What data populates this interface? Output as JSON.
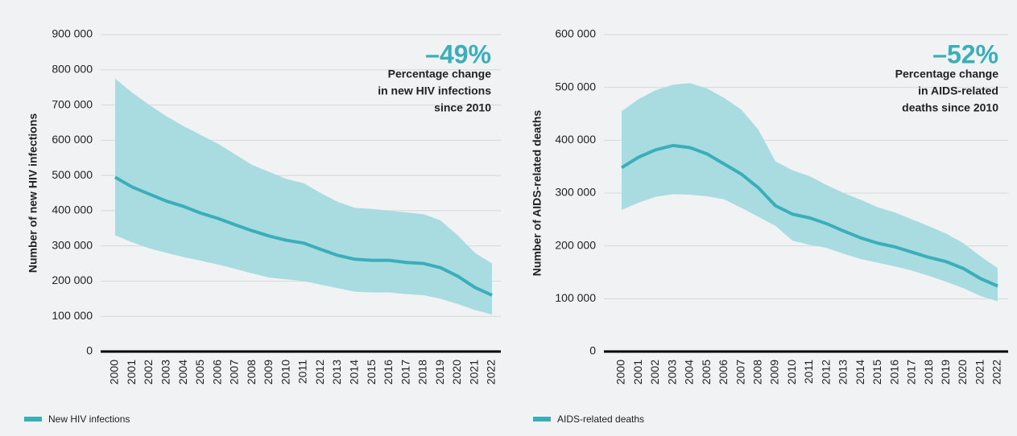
{
  "chart_data": [
    {
      "type": "line",
      "y_label": "Number of new HIV infections",
      "annotation_value": "–49%",
      "annotation_text": [
        "Percentage change",
        "in new HIV infections",
        "since 2010"
      ],
      "categories": [
        "2000",
        "2001",
        "2002",
        "2003",
        "2004",
        "2005",
        "2006",
        "2007",
        "2008",
        "2009",
        "2010",
        "2011",
        "2012",
        "2013",
        "2014",
        "2015",
        "2016",
        "2017",
        "2018",
        "2019",
        "2020",
        "2021",
        "2022"
      ],
      "series": [
        {
          "name": "New HIV infections",
          "color": "#3aafb9",
          "band_color": "#a8dce1",
          "values": [
            495000,
            467000,
            447000,
            427000,
            412000,
            393000,
            378000,
            360000,
            343000,
            328000,
            316000,
            308000,
            290000,
            273000,
            262000,
            259000,
            259000,
            253000,
            250000,
            238000,
            214000,
            182000,
            160000
          ],
          "upper": [
            775000,
            735000,
            700000,
            668000,
            640000,
            615000,
            590000,
            560000,
            530000,
            510000,
            490000,
            478000,
            450000,
            425000,
            408000,
            405000,
            400000,
            395000,
            390000,
            372000,
            330000,
            280000,
            250000
          ],
          "lower": [
            330000,
            310000,
            293000,
            280000,
            268000,
            258000,
            247000,
            235000,
            222000,
            210000,
            205000,
            200000,
            190000,
            180000,
            170000,
            168000,
            168000,
            163000,
            160000,
            150000,
            135000,
            118000,
            105000
          ]
        }
      ],
      "ylim": [
        0,
        900000
      ],
      "yticks": [
        0,
        {
          "value": 100000,
          "label": "100 000"
        },
        {
          "value": 200000,
          "label": "200 000"
        },
        {
          "value": 300000,
          "label": "300 000"
        },
        {
          "value": 400000,
          "label": "400 000"
        },
        {
          "value": 500000,
          "label": "500 000"
        },
        {
          "value": 600000,
          "label": "600 000"
        },
        {
          "value": 700000,
          "label": "700 000"
        },
        {
          "value": 800000,
          "label": "800 000"
        },
        {
          "value": 900000,
          "label": "900 000"
        }
      ]
    },
    {
      "type": "line",
      "y_label": "Number of AIDS-related deaths",
      "annotation_value": "–52%",
      "annotation_text": [
        "Percentage change",
        "in AIDS-related",
        "deaths since 2010"
      ],
      "categories": [
        "2000",
        "2001",
        "2002",
        "2003",
        "2004",
        "2005",
        "2006",
        "2007",
        "2008",
        "2009",
        "2010",
        "2011",
        "2012",
        "2013",
        "2014",
        "2015",
        "2016",
        "2017",
        "2018",
        "2019",
        "2020",
        "2021",
        "2022"
      ],
      "series": [
        {
          "name": "AIDS-related deaths",
          "color": "#3aafb9",
          "band_color": "#a8dce1",
          "values": [
            348000,
            368000,
            382000,
            390000,
            386000,
            374000,
            355000,
            336000,
            310000,
            276000,
            260000,
            253000,
            242000,
            228000,
            215000,
            205000,
            198000,
            188000,
            178000,
            170000,
            157000,
            138000,
            124000
          ],
          "upper": [
            455000,
            478000,
            495000,
            505000,
            508000,
            498000,
            480000,
            458000,
            420000,
            360000,
            343000,
            332000,
            315000,
            300000,
            287000,
            273000,
            263000,
            250000,
            237000,
            223000,
            205000,
            180000,
            158000
          ],
          "lower": [
            268000,
            282000,
            293000,
            298000,
            297000,
            294000,
            288000,
            272000,
            255000,
            238000,
            210000,
            202000,
            196000,
            185000,
            175000,
            168000,
            161000,
            153000,
            143000,
            132000,
            120000,
            105000,
            95000
          ]
        }
      ],
      "ylim": [
        0,
        600000
      ],
      "yticks": [
        0,
        {
          "value": 100000,
          "label": "100 000"
        },
        {
          "value": 200000,
          "label": "200 000"
        },
        {
          "value": 300000,
          "label": "300 000"
        },
        {
          "value": 400000,
          "label": "400 000"
        },
        {
          "value": 500000,
          "label": "500 000"
        },
        {
          "value": 600000,
          "label": "600 000"
        }
      ]
    }
  ]
}
